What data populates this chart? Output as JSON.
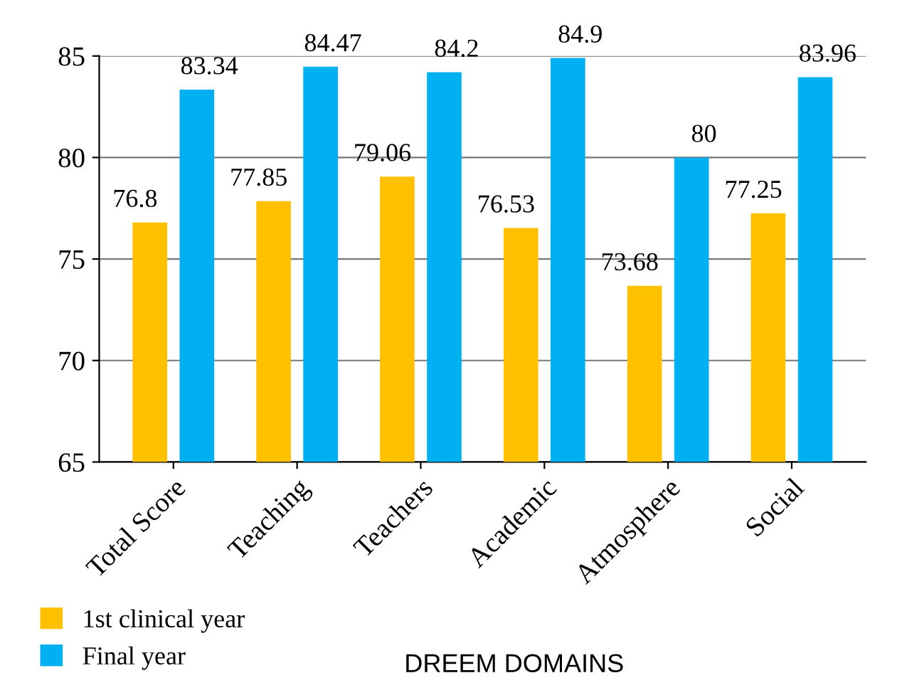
{
  "chart_data": {
    "type": "bar",
    "xlabel": "DREEM DOMAINS",
    "categories": [
      "Total Score",
      "Teaching",
      "Teachers",
      "Academic",
      "Atmosphere",
      "Social"
    ],
    "series": [
      {
        "name": "1st clinical year",
        "color": "#ffc000",
        "values": [
          76.8,
          77.85,
          79.06,
          76.53,
          73.68,
          77.25
        ]
      },
      {
        "name": "Final year",
        "color": "#00b0f0",
        "values": [
          83.34,
          84.47,
          84.2,
          84.9,
          80,
          83.96
        ]
      }
    ],
    "ylim": [
      65,
      85
    ],
    "yticks": [
      65,
      70,
      75,
      80,
      85
    ],
    "grid": "y",
    "legend": "bottom left",
    "data_labels": true
  }
}
